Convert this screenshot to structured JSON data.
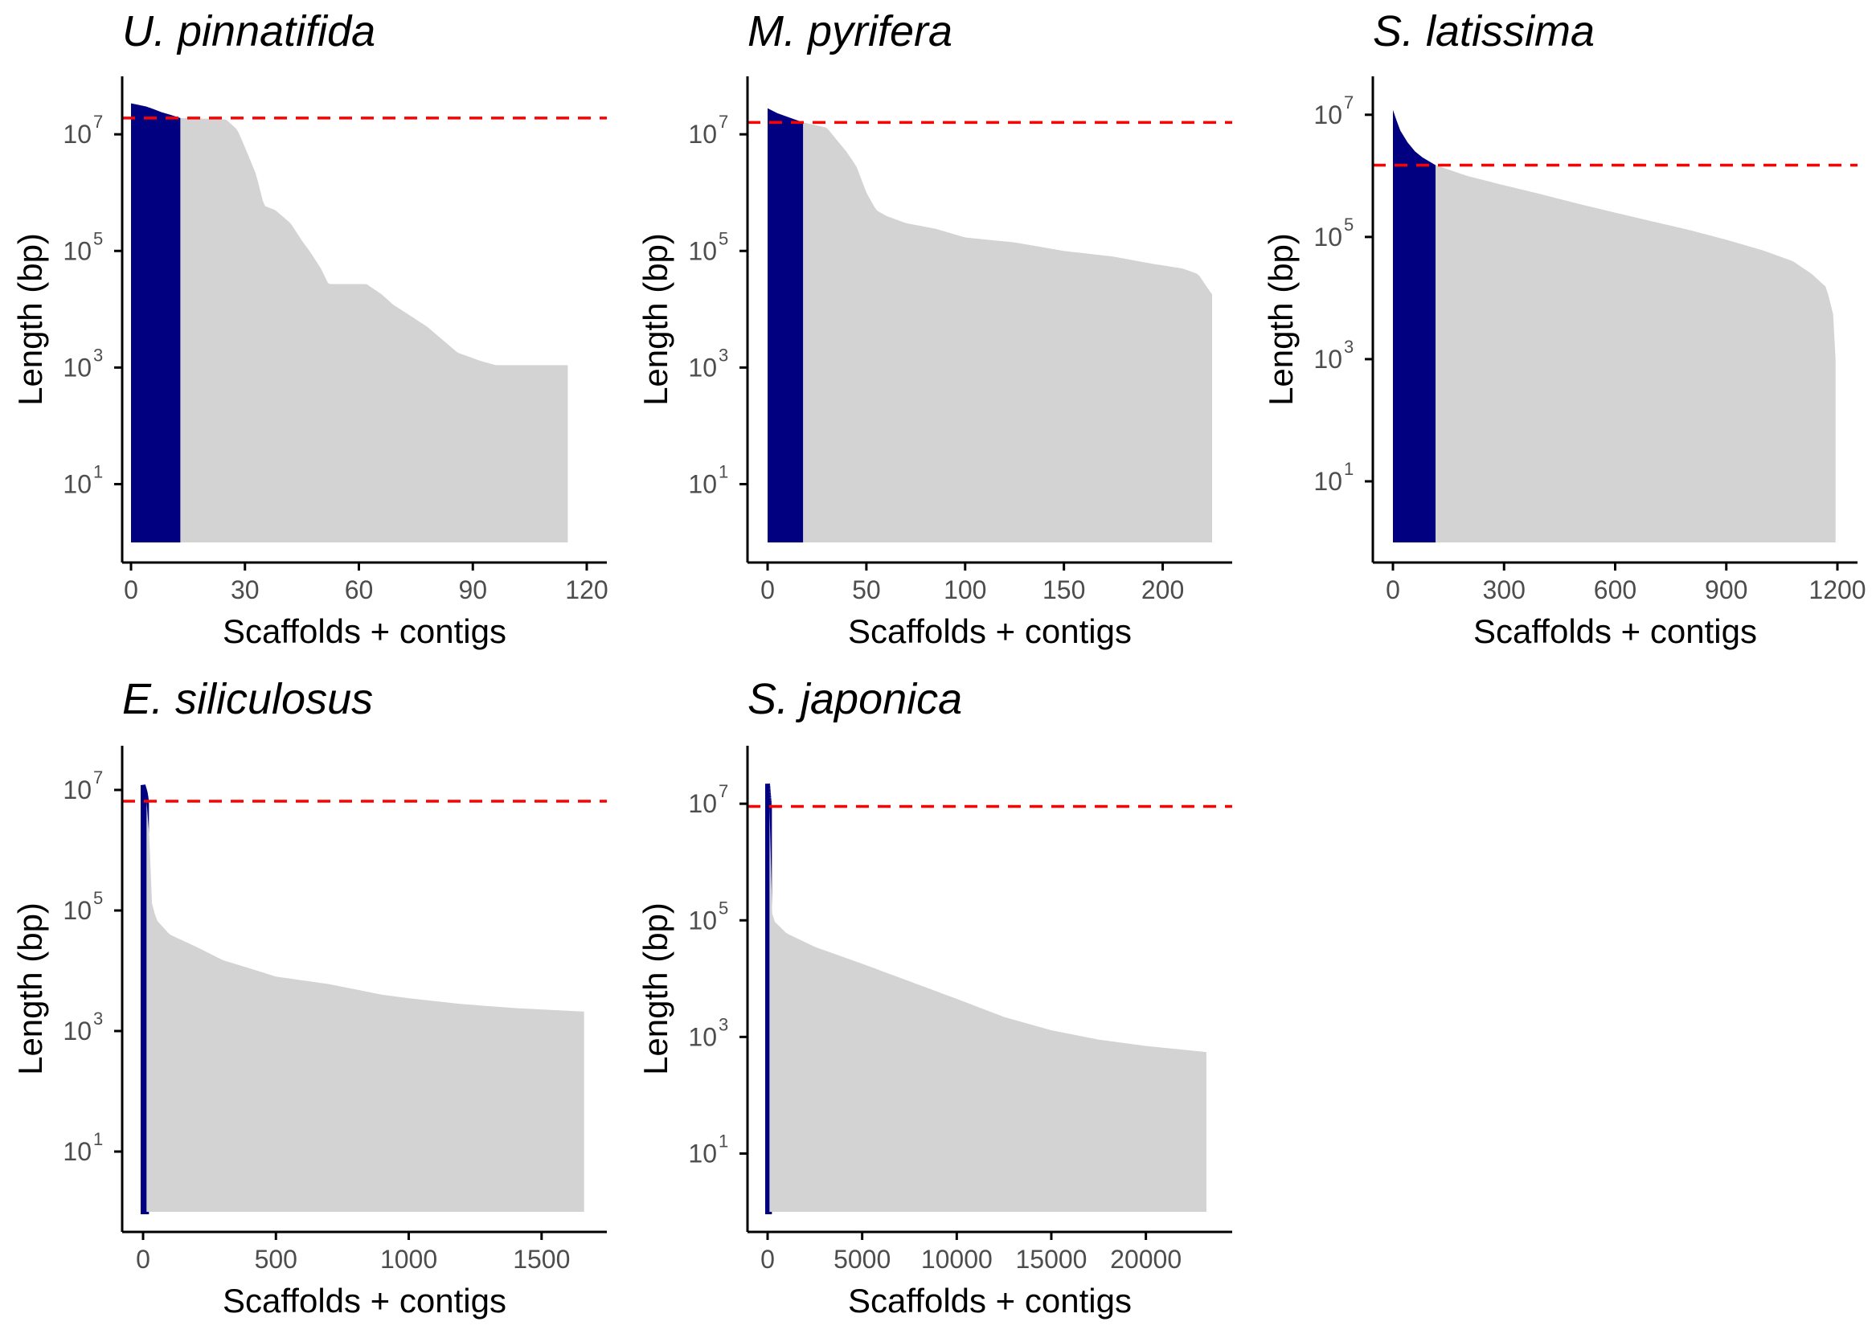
{
  "figure": {
    "colors": {
      "n50": "#000080",
      "rest": "#d3d3d3",
      "n50_line": "#ff0000",
      "axis": "#000000"
    }
  },
  "chart_data": [
    {
      "type": "area",
      "title": "U. pinnatifida",
      "xlabel": "Scaffolds + contigs",
      "ylabel": "Length (bp)",
      "scale_y": "log10",
      "xlim": [
        0,
        120
      ],
      "x_ticks": [
        "0",
        "30",
        "60",
        "90",
        "120"
      ],
      "x_tick_values": [
        0,
        30,
        60,
        90,
        120
      ],
      "y_ticks": [
        "10",
        "10",
        "10",
        "10"
      ],
      "y_tick_exponents": [
        "1",
        "3",
        "5",
        "7"
      ],
      "ylim_log10": [
        0,
        7.65
      ],
      "n50_rank": 13,
      "n50_length": 19000000,
      "n_sequences": 115,
      "profile": [
        [
          0,
          34000000.0
        ],
        [
          2,
          32000000.0
        ],
        [
          4,
          30000000.0
        ],
        [
          6,
          27000000.0
        ],
        [
          8,
          24000000.0
        ],
        [
          10,
          22000000.0
        ],
        [
          13,
          19000000.0
        ],
        [
          20,
          18500000.0
        ],
        [
          25,
          18000000.0
        ],
        [
          28,
          12000000.0
        ],
        [
          30,
          6000000.0
        ],
        [
          33,
          2000000.0
        ],
        [
          35,
          600000.0
        ],
        [
          38,
          500000.0
        ],
        [
          42,
          300000.0
        ],
        [
          45,
          150000.0
        ],
        [
          47,
          100000.0
        ],
        [
          50,
          50000.0
        ],
        [
          52,
          27000.0
        ],
        [
          62,
          27000.0
        ],
        [
          66,
          18000.0
        ],
        [
          69,
          12000.0
        ],
        [
          72,
          9000.0
        ],
        [
          78,
          5000.0
        ],
        [
          82,
          3000.0
        ],
        [
          86,
          1800.0
        ],
        [
          92,
          1300.0
        ],
        [
          96,
          1100.0
        ],
        [
          115,
          1100.0
        ]
      ],
      "series": [
        {
          "name": "",
          "color": "#000080",
          "x": [
            0,
            13
          ]
        },
        {
          "name": "",
          "color": "#d3d3d3",
          "x": [
            13,
            115
          ]
        }
      ]
    },
    {
      "type": "area",
      "title": "M. pyrifera",
      "xlabel": "Scaffolds + contigs",
      "ylabel": "Length (bp)",
      "scale_y": "log10",
      "xlim": [
        0,
        225
      ],
      "x_ticks": [
        "0",
        "50",
        "100",
        "150",
        "200"
      ],
      "x_tick_values": [
        0,
        50,
        100,
        150,
        200
      ],
      "y_ticks": [
        "10",
        "10",
        "10",
        "10"
      ],
      "y_tick_exponents": [
        "1",
        "3",
        "5",
        "7"
      ],
      "ylim_log10": [
        0,
        7.65
      ],
      "n50_rank": 18,
      "n50_length": 16000000,
      "n_sequences": 225,
      "profile": [
        [
          0,
          28000000.0
        ],
        [
          5,
          23000000.0
        ],
        [
          10,
          20000000.0
        ],
        [
          18,
          16000000.0
        ],
        [
          30,
          13000000.0
        ],
        [
          35,
          8000000.0
        ],
        [
          40,
          5000000.0
        ],
        [
          45,
          2800000.0
        ],
        [
          50,
          1000000.0
        ],
        [
          55,
          500000.0
        ],
        [
          60,
          400000.0
        ],
        [
          70,
          300000.0
        ],
        [
          85,
          240000.0
        ],
        [
          100,
          170000.0
        ],
        [
          125,
          140000.0
        ],
        [
          150,
          100000.0
        ],
        [
          175,
          80000.0
        ],
        [
          195,
          60000.0
        ],
        [
          210,
          50000.0
        ],
        [
          218,
          40000.0
        ],
        [
          222,
          25000.0
        ],
        [
          225,
          18000.0
        ]
      ],
      "series": [
        {
          "name": "",
          "color": "#000080",
          "x": [
            0,
            18
          ]
        },
        {
          "name": "",
          "color": "#d3d3d3",
          "x": [
            18,
            225
          ]
        }
      ]
    },
    {
      "type": "area",
      "title": "S. latissima",
      "xlabel": "Scaffolds + contigs",
      "ylabel": "Length (bp)",
      "scale_y": "log10",
      "xlim": [
        0,
        1200
      ],
      "x_ticks": [
        "0",
        "300",
        "600",
        "900",
        "1200"
      ],
      "x_tick_values": [
        0,
        300,
        600,
        900,
        1200
      ],
      "y_ticks": [
        "10",
        "10",
        "10",
        "10"
      ],
      "y_tick_exponents": [
        "1",
        "3",
        "5",
        "7"
      ],
      "ylim_log10": [
        0,
        7.3
      ],
      "n50_rank": 115,
      "n50_length": 1500000,
      "n_sequences": 1195,
      "profile": [
        [
          0,
          12000000.0
        ],
        [
          10,
          8000000.0
        ],
        [
          20,
          5500000.0
        ],
        [
          40,
          3500000.0
        ],
        [
          60,
          2500000.0
        ],
        [
          80,
          2000000.0
        ],
        [
          115,
          1500000.0
        ],
        [
          200,
          1000000.0
        ],
        [
          300,
          700000.0
        ],
        [
          400,
          500000.0
        ],
        [
          500,
          350000.0
        ],
        [
          600,
          250000.0
        ],
        [
          700,
          180000.0
        ],
        [
          800,
          130000.0
        ],
        [
          900,
          90000.0
        ],
        [
          1000,
          60000.0
        ],
        [
          1080,
          40000.0
        ],
        [
          1130,
          25000.0
        ],
        [
          1170,
          15000.0
        ],
        [
          1190,
          5000.0
        ],
        [
          1195,
          1000.0
        ]
      ],
      "series": [
        {
          "name": "",
          "color": "#000080",
          "x": [
            0,
            115
          ]
        },
        {
          "name": "",
          "color": "#d3d3d3",
          "x": [
            115,
            1195
          ]
        }
      ]
    },
    {
      "type": "area",
      "title": "E. siliculosus",
      "xlabel": "Scaffolds + contigs",
      "ylabel": "Length (bp)",
      "scale_y": "log10",
      "xlim": [
        0,
        1670
      ],
      "x_ticks": [
        "0",
        "500",
        "1000",
        "1500"
      ],
      "x_tick_values": [
        0,
        500,
        1000,
        1500
      ],
      "y_ticks": [
        "10",
        "10",
        "10",
        "10"
      ],
      "y_tick_exponents": [
        "1",
        "3",
        "5",
        "7"
      ],
      "ylim_log10": [
        0,
        7.4
      ],
      "n50_rank": 13,
      "n50_length": 6500000,
      "n_sequences": 1660,
      "profile": [
        [
          0,
          12000000.0
        ],
        [
          8,
          9000000.0
        ],
        [
          13,
          6500000.0
        ],
        [
          20,
          5000000.0
        ],
        [
          25,
          1000000.0
        ],
        [
          30,
          150000.0
        ],
        [
          50,
          70000.0
        ],
        [
          100,
          40000.0
        ],
        [
          200,
          25000.0
        ],
        [
          300,
          15000.0
        ],
        [
          400,
          11000.0
        ],
        [
          500,
          8000.0
        ],
        [
          700,
          6000.0
        ],
        [
          900,
          4000.0
        ],
        [
          1000,
          3500.0
        ],
        [
          1200,
          2800.0
        ],
        [
          1400,
          2400.0
        ],
        [
          1660,
          2100.0
        ]
      ],
      "series": [
        {
          "name": "",
          "color": "#000080",
          "x": [
            0,
            13
          ]
        },
        {
          "name": "",
          "color": "#d3d3d3",
          "x": [
            13,
            1660
          ]
        }
      ]
    },
    {
      "type": "area",
      "title": "S. japonica",
      "xlabel": "Scaffolds + contigs",
      "ylabel": "Length (bp)",
      "scale_y": "log10",
      "xlim": [
        0,
        23500
      ],
      "x_ticks": [
        "0",
        "5000",
        "10000",
        "15000",
        "20000"
      ],
      "x_tick_values": [
        0,
        5000,
        10000,
        15000,
        20000
      ],
      "y_ticks": [
        "10",
        "10",
        "10",
        "10"
      ],
      "y_tick_exponents": [
        "1",
        "3",
        "5",
        "7"
      ],
      "ylim_log10": [
        0,
        7.65
      ],
      "n50_rank": 100,
      "n50_length": 9000000,
      "n_sequences": 23200,
      "profile": [
        [
          0,
          22000000.0
        ],
        [
          100,
          9000000.0
        ],
        [
          150,
          200000.0
        ],
        [
          300,
          100000.0
        ],
        [
          1000,
          60000.0
        ],
        [
          2500,
          35000.0
        ],
        [
          5000,
          18000.0
        ],
        [
          7500,
          9000.0
        ],
        [
          10000,
          4500.0
        ],
        [
          12500,
          2200.0
        ],
        [
          15000,
          1300.0
        ],
        [
          17500,
          900
        ],
        [
          20000,
          700
        ],
        [
          23200,
          550
        ]
      ],
      "series": [
        {
          "name": "",
          "color": "#000080",
          "x": [
            0,
            100
          ]
        },
        {
          "name": "",
          "color": "#d3d3d3",
          "x": [
            100,
            23200
          ]
        }
      ]
    }
  ]
}
